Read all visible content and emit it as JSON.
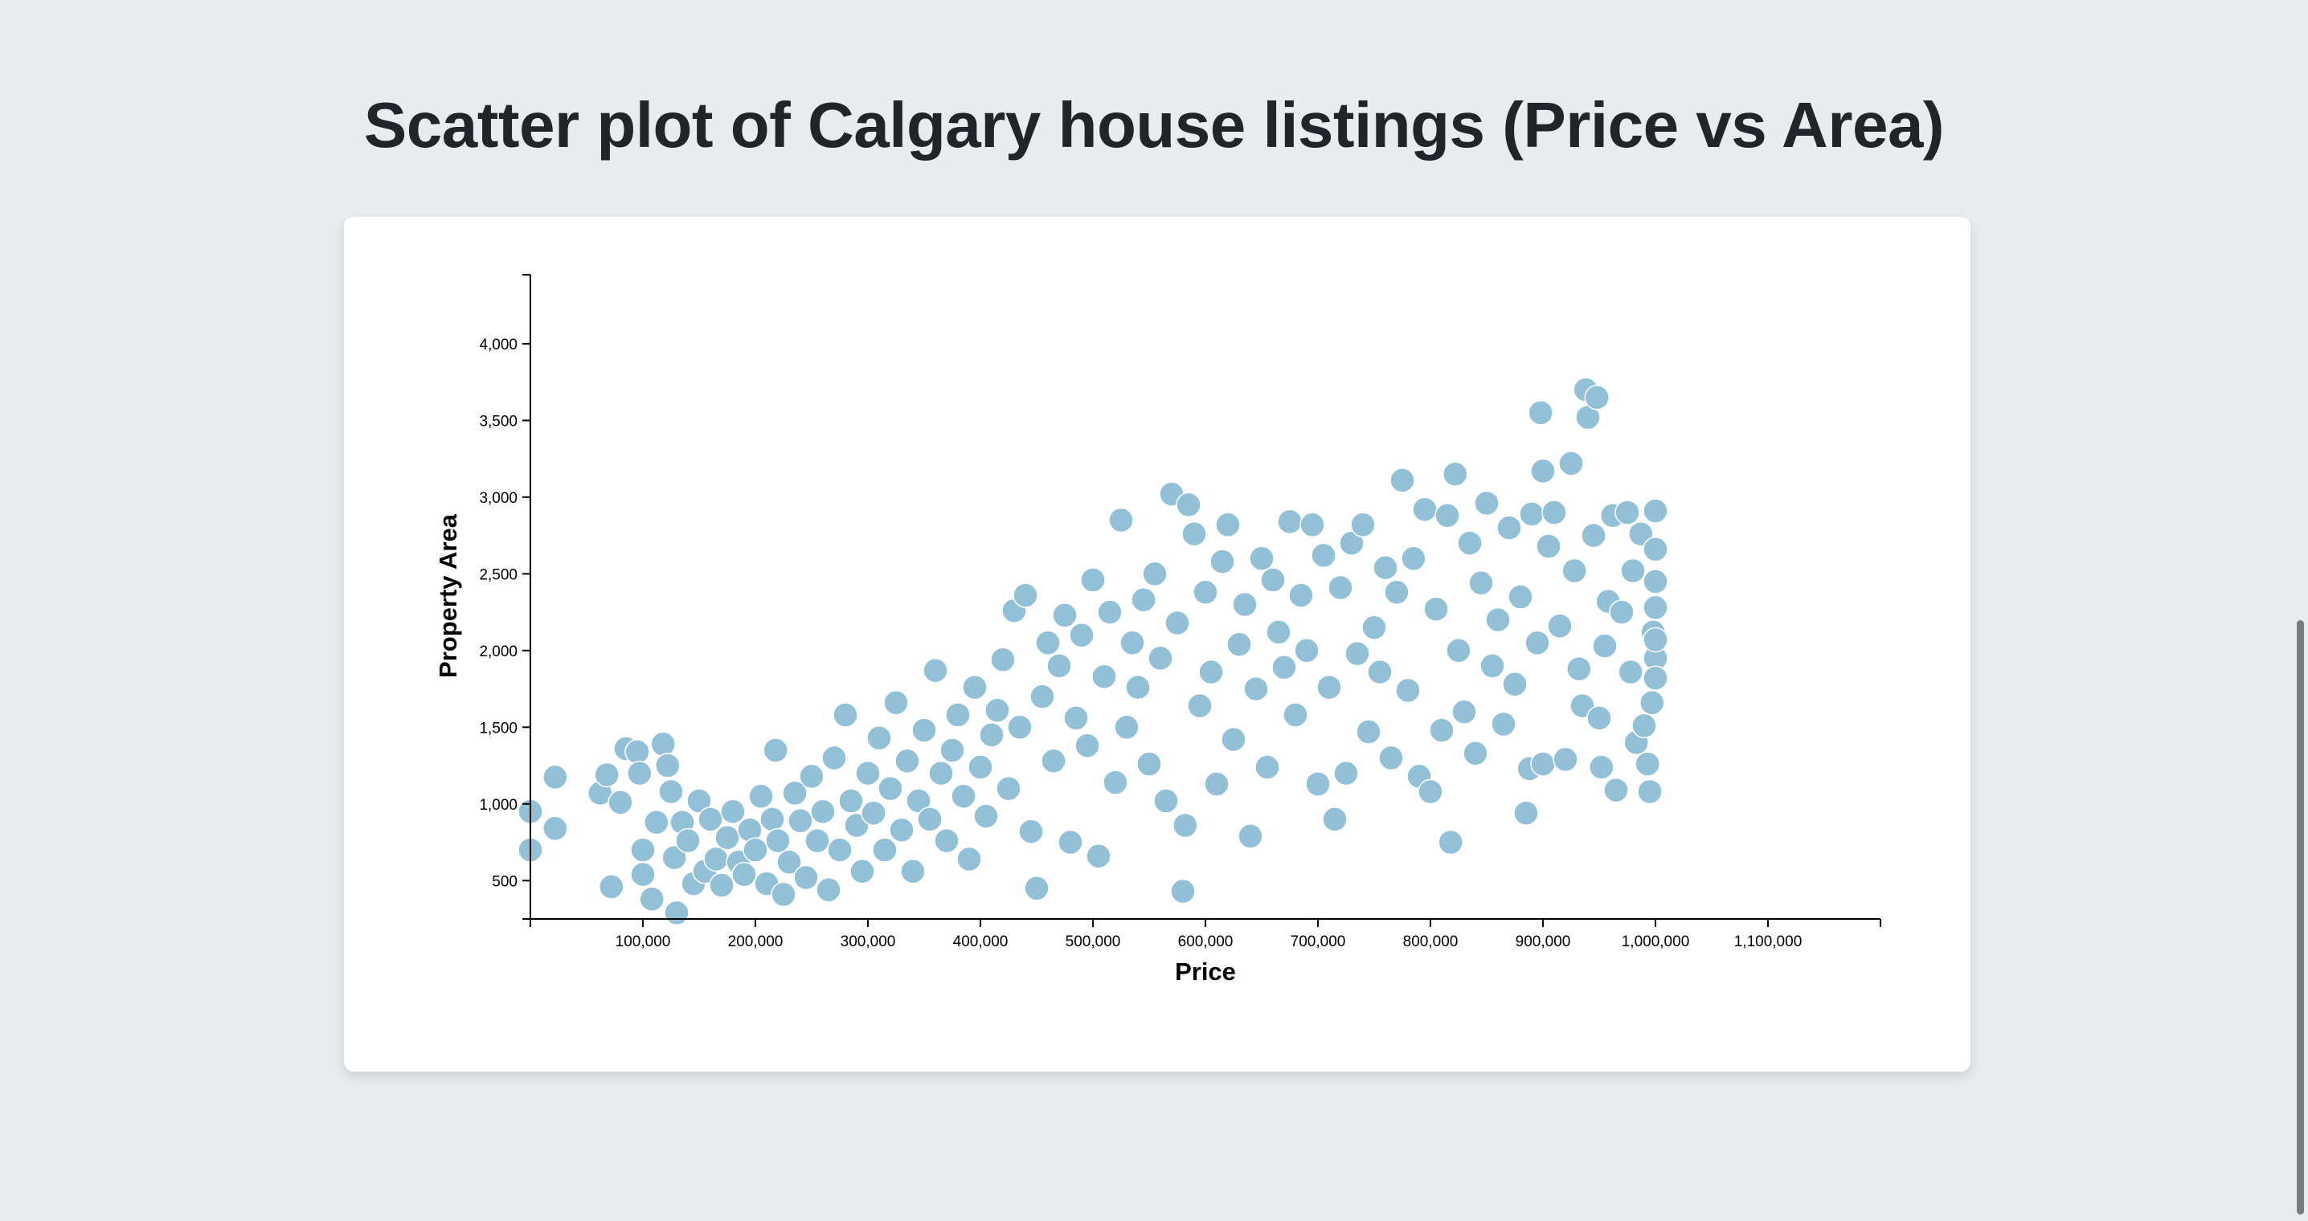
{
  "page": {
    "title": "Scatter plot of Calgary house listings (Price vs Area)"
  },
  "colors": {
    "background": "#e8ecef",
    "card": "#ffffff",
    "point_fill": "#92c0d6",
    "point_stroke": "#ffffff",
    "title_text": "#212529"
  },
  "chart_data": {
    "type": "scatter",
    "title": "Scatter plot of Calgary house listings (Price vs Area)",
    "xlabel": "Price",
    "ylabel": "Property Area",
    "xlim": [
      0,
      1200000
    ],
    "ylim": [
      250,
      4450
    ],
    "x_ticks": [
      100000,
      200000,
      300000,
      400000,
      500000,
      600000,
      700000,
      800000,
      900000,
      1000000,
      1100000
    ],
    "x_tick_labels": [
      "100,000",
      "200,000",
      "300,000",
      "400,000",
      "500,000",
      "600,000",
      "700,000",
      "800,000",
      "900,000",
      "1,000,000",
      "1,100,000"
    ],
    "y_ticks": [
      500,
      1000,
      1500,
      2000,
      2500,
      3000,
      3500,
      4000
    ],
    "y_tick_labels": [
      "500",
      "1,000",
      "1,500",
      "2,000",
      "2,500",
      "3,000",
      "3,500",
      "4,000"
    ],
    "grid": false,
    "legend": "none",
    "notes_visible_outliers": "points include far-left and far-right sparse listings",
    "points": [
      [
        0,
        950
      ],
      [
        0,
        700
      ],
      [
        22000,
        1175
      ],
      [
        22000,
        840
      ],
      [
        62000,
        1070
      ],
      [
        68000,
        1190
      ],
      [
        72000,
        460
      ],
      [
        80000,
        1010
      ],
      [
        85000,
        1360
      ],
      [
        95000,
        1340
      ],
      [
        97000,
        1200
      ],
      [
        100000,
        700
      ],
      [
        100000,
        540
      ],
      [
        108000,
        380
      ],
      [
        112000,
        880
      ],
      [
        118000,
        1390
      ],
      [
        122000,
        1250
      ],
      [
        125000,
        1080
      ],
      [
        128000,
        650
      ],
      [
        130000,
        290
      ],
      [
        135000,
        880
      ],
      [
        140000,
        760
      ],
      [
        145000,
        480
      ],
      [
        150000,
        1020
      ],
      [
        155000,
        560
      ],
      [
        160000,
        900
      ],
      [
        165000,
        640
      ],
      [
        170000,
        470
      ],
      [
        175000,
        780
      ],
      [
        180000,
        950
      ],
      [
        185000,
        620
      ],
      [
        190000,
        540
      ],
      [
        195000,
        830
      ],
      [
        200000,
        700
      ],
      [
        205000,
        1050
      ],
      [
        210000,
        480
      ],
      [
        215000,
        900
      ],
      [
        218000,
        1350
      ],
      [
        220000,
        760
      ],
      [
        225000,
        410
      ],
      [
        230000,
        620
      ],
      [
        235000,
        1070
      ],
      [
        240000,
        890
      ],
      [
        245000,
        520
      ],
      [
        250000,
        1180
      ],
      [
        255000,
        760
      ],
      [
        260000,
        950
      ],
      [
        265000,
        440
      ],
      [
        270000,
        1300
      ],
      [
        275000,
        700
      ],
      [
        280000,
        1580
      ],
      [
        285000,
        1020
      ],
      [
        290000,
        860
      ],
      [
        295000,
        560
      ],
      [
        300000,
        1200
      ],
      [
        305000,
        940
      ],
      [
        310000,
        1430
      ],
      [
        315000,
        700
      ],
      [
        320000,
        1100
      ],
      [
        325000,
        1660
      ],
      [
        330000,
        830
      ],
      [
        335000,
        1280
      ],
      [
        340000,
        560
      ],
      [
        345000,
        1020
      ],
      [
        350000,
        1480
      ],
      [
        355000,
        900
      ],
      [
        360000,
        1870
      ],
      [
        365000,
        1200
      ],
      [
        370000,
        760
      ],
      [
        375000,
        1350
      ],
      [
        380000,
        1580
      ],
      [
        385000,
        1050
      ],
      [
        390000,
        640
      ],
      [
        395000,
        1760
      ],
      [
        400000,
        1240
      ],
      [
        405000,
        920
      ],
      [
        410000,
        1450
      ],
      [
        415000,
        1610
      ],
      [
        420000,
        1940
      ],
      [
        425000,
        1100
      ],
      [
        430000,
        2260
      ],
      [
        435000,
        1500
      ],
      [
        440000,
        2360
      ],
      [
        445000,
        820
      ],
      [
        450000,
        450
      ],
      [
        455000,
        1700
      ],
      [
        460000,
        2050
      ],
      [
        465000,
        1280
      ],
      [
        470000,
        1900
      ],
      [
        475000,
        2230
      ],
      [
        480000,
        750
      ],
      [
        485000,
        1560
      ],
      [
        490000,
        2100
      ],
      [
        495000,
        1380
      ],
      [
        500000,
        2460
      ],
      [
        505000,
        660
      ],
      [
        510000,
        1830
      ],
      [
        515000,
        2250
      ],
      [
        520000,
        1140
      ],
      [
        525000,
        2850
      ],
      [
        530000,
        1500
      ],
      [
        535000,
        2050
      ],
      [
        540000,
        1760
      ],
      [
        545000,
        2330
      ],
      [
        550000,
        1260
      ],
      [
        555000,
        2500
      ],
      [
        560000,
        1950
      ],
      [
        565000,
        1020
      ],
      [
        570000,
        3020
      ],
      [
        575000,
        2180
      ],
      [
        580000,
        430
      ],
      [
        582000,
        860
      ],
      [
        585000,
        2950
      ],
      [
        590000,
        2760
      ],
      [
        595000,
        1640
      ],
      [
        600000,
        2380
      ],
      [
        605000,
        1860
      ],
      [
        610000,
        1130
      ],
      [
        615000,
        2580
      ],
      [
        620000,
        2820
      ],
      [
        625000,
        1420
      ],
      [
        630000,
        2040
      ],
      [
        635000,
        2300
      ],
      [
        640000,
        790
      ],
      [
        645000,
        1750
      ],
      [
        650000,
        2600
      ],
      [
        655000,
        1240
      ],
      [
        660000,
        2460
      ],
      [
        665000,
        2120
      ],
      [
        670000,
        1890
      ],
      [
        675000,
        2840
      ],
      [
        680000,
        1580
      ],
      [
        685000,
        2360
      ],
      [
        690000,
        2000
      ],
      [
        695000,
        2820
      ],
      [
        700000,
        1130
      ],
      [
        705000,
        2620
      ],
      [
        710000,
        1760
      ],
      [
        715000,
        900
      ],
      [
        720000,
        2410
      ],
      [
        725000,
        1200
      ],
      [
        730000,
        2700
      ],
      [
        735000,
        1980
      ],
      [
        740000,
        2820
      ],
      [
        745000,
        1470
      ],
      [
        750000,
        2150
      ],
      [
        755000,
        1860
      ],
      [
        760000,
        2540
      ],
      [
        765000,
        1300
      ],
      [
        770000,
        2380
      ],
      [
        775000,
        3110
      ],
      [
        780000,
        1740
      ],
      [
        785000,
        2600
      ],
      [
        790000,
        1180
      ],
      [
        795000,
        2920
      ],
      [
        800000,
        1080
      ],
      [
        805000,
        2270
      ],
      [
        810000,
        1480
      ],
      [
        815000,
        2880
      ],
      [
        818000,
        750
      ],
      [
        822000,
        3150
      ],
      [
        825000,
        2000
      ],
      [
        830000,
        1600
      ],
      [
        835000,
        2700
      ],
      [
        840000,
        1330
      ],
      [
        845000,
        2440
      ],
      [
        850000,
        2960
      ],
      [
        855000,
        1900
      ],
      [
        860000,
        2200
      ],
      [
        865000,
        1520
      ],
      [
        870000,
        2800
      ],
      [
        875000,
        1780
      ],
      [
        880000,
        2350
      ],
      [
        885000,
        940
      ],
      [
        888000,
        1230
      ],
      [
        890000,
        2890
      ],
      [
        895000,
        2050
      ],
      [
        898000,
        3550
      ],
      [
        900000,
        1260
      ],
      [
        900000,
        3170
      ],
      [
        905000,
        2680
      ],
      [
        910000,
        2900
      ],
      [
        915000,
        2160
      ],
      [
        920000,
        1290
      ],
      [
        925000,
        3220
      ],
      [
        928000,
        2520
      ],
      [
        932000,
        1880
      ],
      [
        935000,
        1640
      ],
      [
        938000,
        3700
      ],
      [
        940000,
        3520
      ],
      [
        945000,
        2750
      ],
      [
        948000,
        3650
      ],
      [
        950000,
        1560
      ],
      [
        952000,
        1240
      ],
      [
        955000,
        2030
      ],
      [
        958000,
        2320
      ],
      [
        962000,
        2880
      ],
      [
        965000,
        1090
      ],
      [
        970000,
        2250
      ],
      [
        975000,
        2900
      ],
      [
        978000,
        1860
      ],
      [
        980000,
        2520
      ],
      [
        983000,
        1400
      ],
      [
        987000,
        2760
      ],
      [
        990000,
        1510
      ],
      [
        993000,
        1260
      ],
      [
        995000,
        1080
      ],
      [
        997000,
        1660
      ],
      [
        998000,
        2120
      ],
      [
        1000000,
        2910
      ],
      [
        1000000,
        2660
      ],
      [
        1000000,
        2450
      ],
      [
        1000000,
        2280
      ],
      [
        1000000,
        1950
      ],
      [
        1000000,
        1820
      ],
      [
        1000000,
        2070
      ]
    ]
  }
}
